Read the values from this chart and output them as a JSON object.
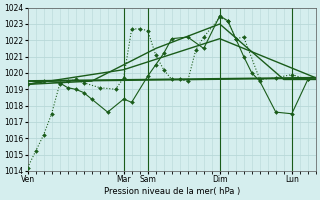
{
  "bg_color": "#d5eeee",
  "grid_color": "#b8d8d8",
  "line_color": "#1a5c1a",
  "xlabel": "Pression niveau de la mer( hPa )",
  "ylim": [
    1014,
    1024
  ],
  "yticks": [
    1014,
    1015,
    1016,
    1017,
    1018,
    1019,
    1020,
    1021,
    1022,
    1023,
    1024
  ],
  "xlim": [
    0,
    36
  ],
  "xtick_labels": [
    "Ven",
    "Mar",
    "Sam",
    "Dim",
    "Lun"
  ],
  "xtick_positions": [
    0,
    12,
    15,
    24,
    33
  ],
  "vline_positions": [
    12,
    15,
    24,
    33
  ],
  "series_dotted": {
    "x": [
      0,
      1,
      2,
      3,
      4,
      5,
      6,
      7,
      9,
      11,
      12,
      13,
      14,
      15,
      16,
      17,
      18,
      19,
      20,
      21,
      22,
      24,
      25,
      26,
      27,
      29,
      31,
      33,
      35
    ],
    "y": [
      1014.2,
      1015.2,
      1016.2,
      1017.5,
      1019.3,
      1019.5,
      1019.6,
      1019.4,
      1019.1,
      1019.0,
      1019.7,
      1022.7,
      1022.7,
      1022.6,
      1021.1,
      1020.2,
      1019.6,
      1019.6,
      1019.5,
      1021.4,
      1022.2,
      1023.4,
      1023.2,
      1022.1,
      1022.2,
      1019.6,
      1019.7,
      1019.9,
      1019.6
    ]
  },
  "series_solid": {
    "x": [
      0,
      2,
      4,
      5,
      6,
      7,
      8,
      10,
      12,
      13,
      15,
      16,
      17,
      18,
      20,
      22,
      24,
      25,
      26,
      27,
      28,
      29,
      31,
      33,
      35
    ],
    "y": [
      1019.3,
      1019.5,
      1019.4,
      1019.1,
      1019.0,
      1018.8,
      1018.4,
      1017.6,
      1018.4,
      1018.2,
      1019.8,
      1020.5,
      1021.2,
      1022.1,
      1022.2,
      1021.5,
      1023.5,
      1023.2,
      1022.1,
      1021.0,
      1020.0,
      1019.5,
      1017.6,
      1017.5,
      1019.6
    ]
  },
  "series_trend": {
    "x": [
      0,
      36
    ],
    "y": [
      1019.5,
      1019.7
    ]
  },
  "series_trend2": {
    "x": [
      0,
      12,
      24,
      36
    ],
    "y": [
      1019.3,
      1020.2,
      1022.1,
      1019.7
    ]
  },
  "series_trend3": {
    "x": [
      0,
      8,
      16,
      24,
      32,
      36
    ],
    "y": [
      1019.3,
      1019.5,
      1021.5,
      1023.0,
      1019.6,
      1019.6
    ]
  }
}
